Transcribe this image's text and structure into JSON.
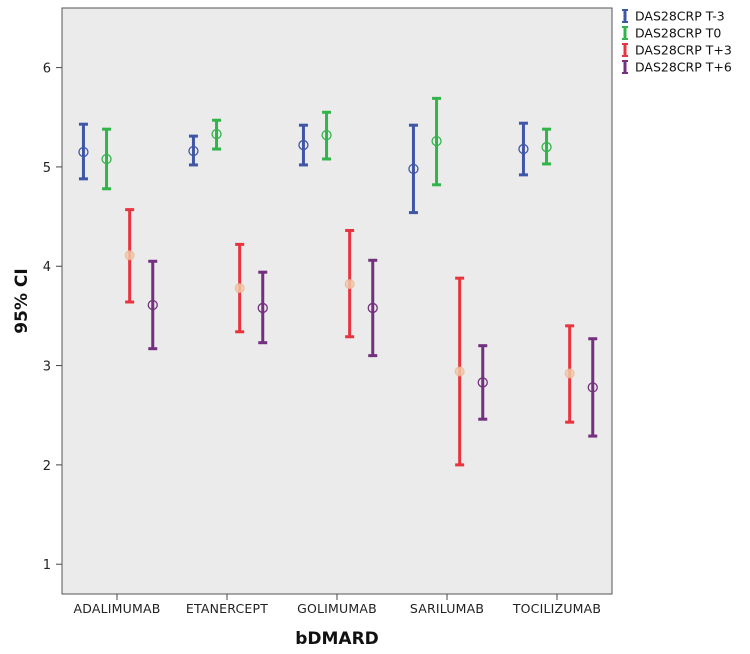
{
  "chart_data": {
    "type": "errorbar",
    "title": "",
    "xlabel": "bDMARD",
    "ylabel": "95% CI",
    "ylim": [
      0.7,
      6.6
    ],
    "yticks": [
      1,
      2,
      3,
      4,
      5,
      6
    ],
    "grid": false,
    "legend_position": "top-right-outside",
    "categories": [
      "ADALIMUMAB",
      "ETANERCEPT",
      "GOLIMUMAB",
      "SARILUMAB",
      "TOCILIZUMAB"
    ],
    "series": [
      {
        "name": "DAS28CRP T-3",
        "color": "#3f55a6",
        "marker": "open-circle",
        "mean": [
          5.15,
          5.16,
          5.22,
          4.98,
          5.18
        ],
        "lower": [
          4.88,
          5.02,
          5.02,
          4.54,
          4.92
        ],
        "upper": [
          5.43,
          5.31,
          5.42,
          5.42,
          5.44
        ]
      },
      {
        "name": "DAS28CRP T0",
        "color": "#33b44a",
        "marker": "open-circle",
        "mean": [
          5.08,
          5.33,
          5.32,
          5.26,
          5.2
        ],
        "lower": [
          4.78,
          5.18,
          5.08,
          4.82,
          5.03
        ],
        "upper": [
          5.38,
          5.47,
          5.55,
          5.69,
          5.38
        ]
      },
      {
        "name": "DAS28CRP T+3",
        "color": "#e8343f",
        "marker": "faint-circle",
        "mean": [
          4.11,
          3.78,
          3.82,
          2.94,
          2.92
        ],
        "lower": [
          3.64,
          3.34,
          3.29,
          2.0,
          2.43
        ],
        "upper": [
          4.57,
          4.22,
          4.36,
          3.88,
          3.4
        ]
      },
      {
        "name": "DAS28CRP T+6",
        "color": "#73307e",
        "marker": "open-circle",
        "mean": [
          3.61,
          3.58,
          3.58,
          2.83,
          2.78
        ],
        "lower": [
          3.17,
          3.23,
          3.1,
          2.46,
          2.29
        ],
        "upper": [
          4.05,
          3.94,
          4.06,
          3.2,
          3.27
        ]
      }
    ]
  },
  "colors": {
    "plot_background": "#ebebeb",
    "frame": "#555555"
  }
}
